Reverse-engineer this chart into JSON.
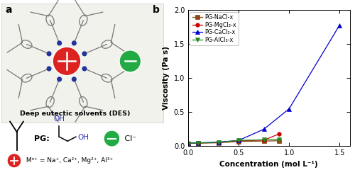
{
  "series": {
    "NaCl": {
      "x": [
        0.0,
        0.1,
        0.3,
        0.5,
        0.75,
        0.9
      ],
      "y": [
        0.04,
        0.045,
        0.05,
        0.07,
        0.075,
        0.08
      ],
      "color": "#8B4513",
      "marker": "s",
      "label": "PG-NaCl-x"
    },
    "MgCl2": {
      "x": [
        0.0,
        0.1,
        0.3,
        0.5,
        0.75,
        0.9
      ],
      "y": [
        0.045,
        0.048,
        0.055,
        0.08,
        0.09,
        0.18
      ],
      "color": "#cc0000",
      "marker": "o",
      "label": "PG-MgCl₂-x"
    },
    "CaCl2": {
      "x": [
        0.0,
        0.1,
        0.3,
        0.5,
        0.75,
        1.0,
        1.5
      ],
      "y": [
        0.045,
        0.05,
        0.06,
        0.085,
        0.25,
        0.55,
        1.78
      ],
      "color": "#0000cc",
      "marker": "^",
      "label": "PG-CaCl₂-x"
    },
    "AlCl3": {
      "x": [
        0.0,
        0.1,
        0.3,
        0.5,
        0.75,
        0.9
      ],
      "y": [
        0.04,
        0.047,
        0.055,
        0.085,
        0.095,
        0.1
      ],
      "color": "#228B22",
      "marker": "v",
      "label": "PG-AlCl₃-x"
    }
  },
  "xlabel": "Concentration (mol L⁻¹)",
  "ylabel": "Viscosity (Pa s)",
  "xlim": [
    0.0,
    1.6
  ],
  "ylim": [
    0.0,
    2.0
  ],
  "yticks": [
    0.0,
    0.5,
    1.0,
    1.5,
    2.0
  ],
  "xticks": [
    0.0,
    0.5,
    1.0,
    1.5
  ],
  "panel_label_a": "a",
  "panel_label_b": "b",
  "bg_color_left": "#f2f2ec",
  "des_label": "Deep eutectic solvents (DES)"
}
